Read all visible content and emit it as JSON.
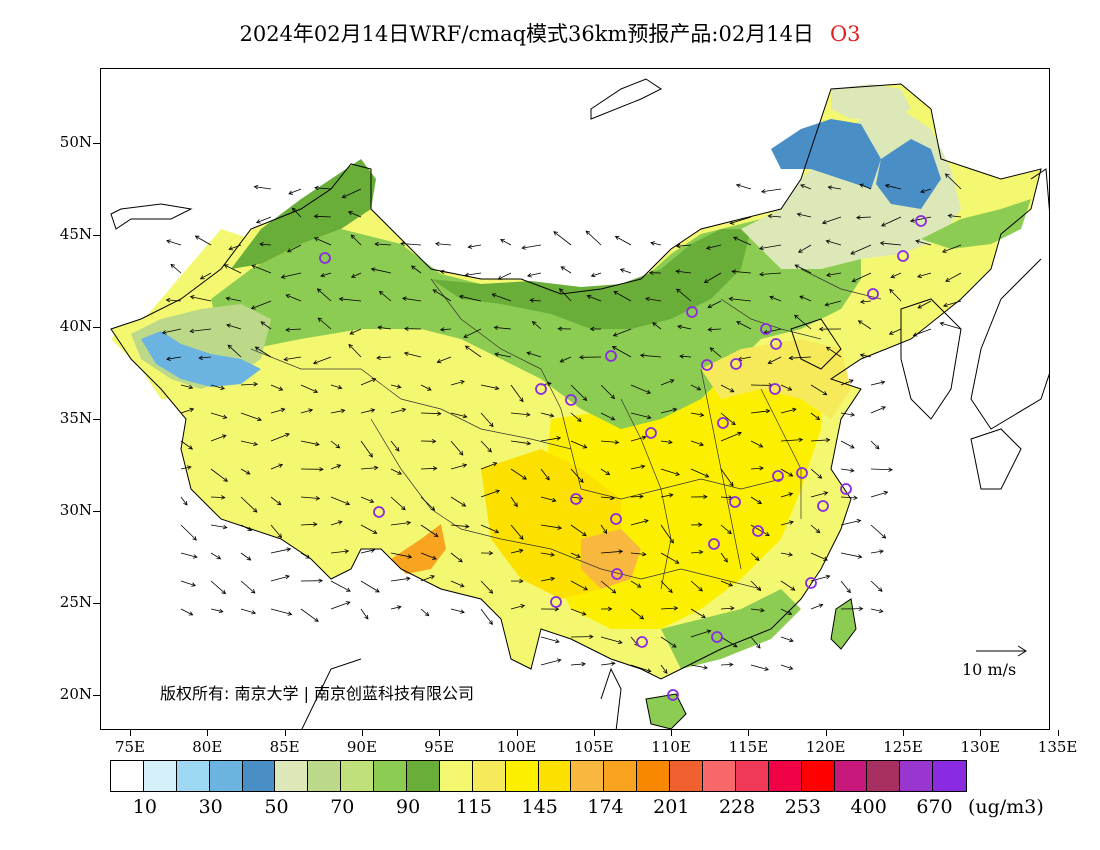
{
  "title": {
    "main": "2024年02月14日WRF/cmaq模式36km预报产品:02月14日",
    "pollutant": "O3"
  },
  "map": {
    "lat_labels": [
      "50N",
      "45N",
      "40N",
      "35N",
      "30N",
      "25N",
      "20N"
    ],
    "lon_labels": [
      "75E",
      "80E",
      "85E",
      "90E",
      "95E",
      "100E",
      "105E",
      "110E",
      "115E",
      "120E",
      "125E",
      "130E",
      "135E"
    ],
    "copyright": "版权所有: 南京大学 | 南京创蓝科技有限公司",
    "wind_reference": "10 m/s",
    "station_marker_color": "#8a2be2"
  },
  "colorbar": {
    "colors": [
      "#ffffff",
      "#d6f0fb",
      "#9ed8f5",
      "#6bb3e0",
      "#4a8ec6",
      "#dce8b8",
      "#bcd98a",
      "#bfe07a",
      "#8dcc52",
      "#6aae3a",
      "#f4f870",
      "#f6ea5a",
      "#fcf000",
      "#fbe000",
      "#f8b840",
      "#f8a420",
      "#f88800",
      "#f06030",
      "#f86868",
      "#f03858",
      "#f00044",
      "#ff0000",
      "#c8187c",
      "#a83060",
      "#9a36d0",
      "#8a2be2"
    ],
    "labels": [
      "10",
      "30",
      "50",
      "70",
      "90",
      "115",
      "145",
      "174",
      "201",
      "228",
      "253",
      "400",
      "670"
    ],
    "units": "(ug/m3)"
  }
}
